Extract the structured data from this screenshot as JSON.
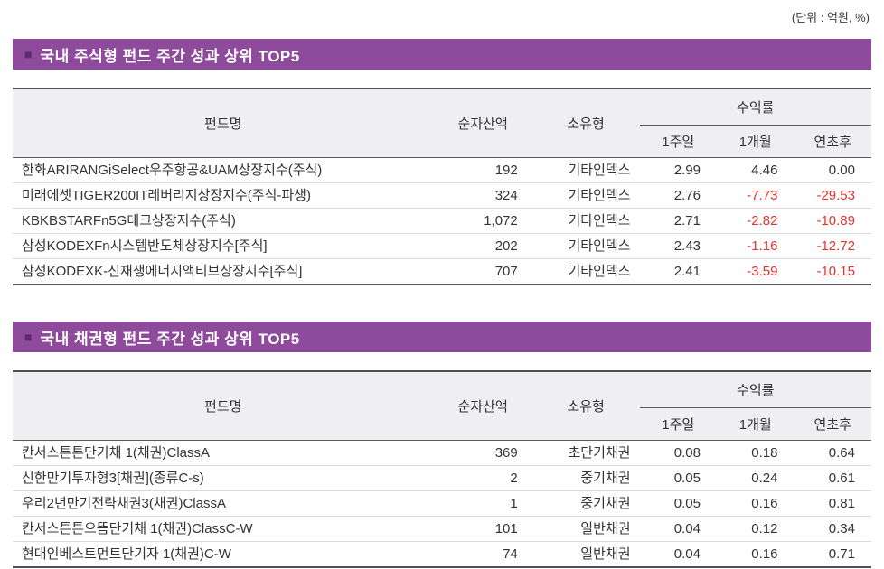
{
  "unit_note": "(단위 : 억원, %)",
  "colors": {
    "accent": "#8e4a9b",
    "accent_dark": "#5a2c69",
    "negative": "#e5332c"
  },
  "tables": [
    {
      "bullet": "■",
      "title": "국내 주식형 펀드 주간 성과 상위 TOP5",
      "headers": {
        "fund": "펀드명",
        "nav": "순자산액",
        "type": "소유형",
        "returns": "수익률",
        "w1": "1주일",
        "m1": "1개월",
        "ytd": "연초후"
      },
      "rows": [
        {
          "name": "한화ARIRANGiSelect우주항공&UAM상장지수(주식)",
          "nav": "192",
          "type": "기타인덱스",
          "w1": "2.99",
          "m1": "4.46",
          "ytd": "0.00"
        },
        {
          "name": "미래에셋TIGER200IT레버리지상장지수(주식-파생)",
          "nav": "324",
          "type": "기타인덱스",
          "w1": "2.76",
          "m1": "-7.73",
          "ytd": "-29.53"
        },
        {
          "name": "KBKBSTARFn5G테크상장지수(주식)",
          "nav": "1,072",
          "type": "기타인덱스",
          "w1": "2.71",
          "m1": "-2.82",
          "ytd": "-10.89"
        },
        {
          "name": "삼성KODEXFn시스템반도체상장지수[주식]",
          "nav": "202",
          "type": "기타인덱스",
          "w1": "2.43",
          "m1": "-1.16",
          "ytd": "-12.72"
        },
        {
          "name": "삼성KODEXK-신재생에너지액티브상장지수[주식]",
          "nav": "707",
          "type": "기타인덱스",
          "w1": "2.41",
          "m1": "-3.59",
          "ytd": "-10.15"
        }
      ]
    },
    {
      "bullet": "■",
      "title": "국내 채권형 펀드 주간 성과 상위 TOP5",
      "headers": {
        "fund": "펀드명",
        "nav": "순자산액",
        "type": "소유형",
        "returns": "수익률",
        "w1": "1주일",
        "m1": "1개월",
        "ytd": "연초후"
      },
      "rows": [
        {
          "name": "칸서스튼튼단기채 1(채권)ClassA",
          "nav": "369",
          "type": "초단기채권",
          "w1": "0.08",
          "m1": "0.18",
          "ytd": "0.64"
        },
        {
          "name": "신한만기투자형3[채권](종류C-s)",
          "nav": "2",
          "type": "중기채권",
          "w1": "0.05",
          "m1": "0.24",
          "ytd": "0.61"
        },
        {
          "name": "우리2년만기전략채권3(채권)ClassA",
          "nav": "1",
          "type": "중기채권",
          "w1": "0.05",
          "m1": "0.16",
          "ytd": "0.81"
        },
        {
          "name": "칸서스튼튼으뜸단기채 1(채권)ClassC-W",
          "nav": "101",
          "type": "일반채권",
          "w1": "0.04",
          "m1": "0.12",
          "ytd": "0.34"
        },
        {
          "name": "현대인베스트먼트단기자 1(채권)C-W",
          "nav": "74",
          "type": "일반채권",
          "w1": "0.04",
          "m1": "0.16",
          "ytd": "0.71"
        }
      ]
    }
  ]
}
